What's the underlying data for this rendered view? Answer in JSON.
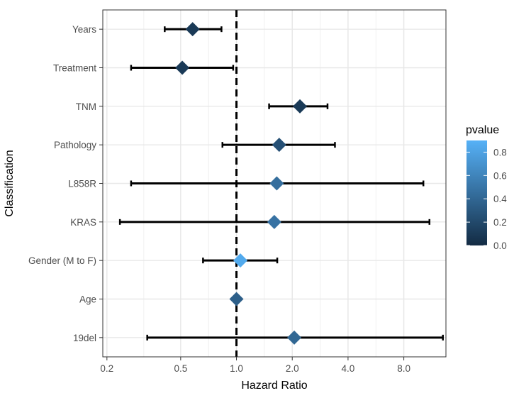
{
  "chart_data": {
    "type": "forest",
    "xlabel": "Hazard Ratio",
    "ylabel": "Classification",
    "x_scale": "log",
    "xlim": [
      0.19,
      13.5
    ],
    "x_ticks": [
      {
        "value": 0.2,
        "label": "0.2"
      },
      {
        "value": 0.5,
        "label": "0.5"
      },
      {
        "value": 1.0,
        "label": "1.0"
      },
      {
        "value": 2.0,
        "label": "2.0"
      },
      {
        "value": 4.0,
        "label": "4.0"
      },
      {
        "value": 8.0,
        "label": "8.0"
      }
    ],
    "reference_line": 1.0,
    "grid": true,
    "rows": [
      {
        "label": "Years",
        "hr": 0.58,
        "lower": 0.41,
        "upper": 0.83,
        "pvalue": 0.1
      },
      {
        "label": "Treatment",
        "hr": 0.51,
        "lower": 0.27,
        "upper": 0.96,
        "pvalue": 0.1
      },
      {
        "label": "TNM",
        "hr": 2.2,
        "lower": 1.5,
        "upper": 3.1,
        "pvalue": 0.1
      },
      {
        "label": "Pathology",
        "hr": 1.7,
        "lower": 0.84,
        "upper": 3.4,
        "pvalue": 0.25
      },
      {
        "label": "L858R",
        "hr": 1.65,
        "lower": 0.27,
        "upper": 10.2,
        "pvalue": 0.45
      },
      {
        "label": "KRAS",
        "hr": 1.6,
        "lower": 0.235,
        "upper": 11.0,
        "pvalue": 0.48
      },
      {
        "label": "Gender (M to F)",
        "hr": 1.05,
        "lower": 0.66,
        "upper": 1.66,
        "pvalue": 0.85
      },
      {
        "label": "Age",
        "hr": 1.0,
        "lower": 1.0,
        "upper": 1.0,
        "pvalue": 0.35
      },
      {
        "label": "19del",
        "hr": 2.05,
        "lower": 0.33,
        "upper": 13.0,
        "pvalue": 0.4
      }
    ],
    "legend": {
      "title": "pvalue",
      "position": "right",
      "range": [
        0.0,
        0.9
      ],
      "ticks": [
        {
          "value": 0.8,
          "label": "0.8"
        },
        {
          "value": 0.6,
          "label": "0.6"
        },
        {
          "value": 0.4,
          "label": "0.4"
        },
        {
          "value": 0.2,
          "label": "0.2"
        },
        {
          "value": 0.0,
          "label": "0.0"
        }
      ],
      "color_low": "#132B43",
      "color_high": "#56B1F7"
    }
  }
}
